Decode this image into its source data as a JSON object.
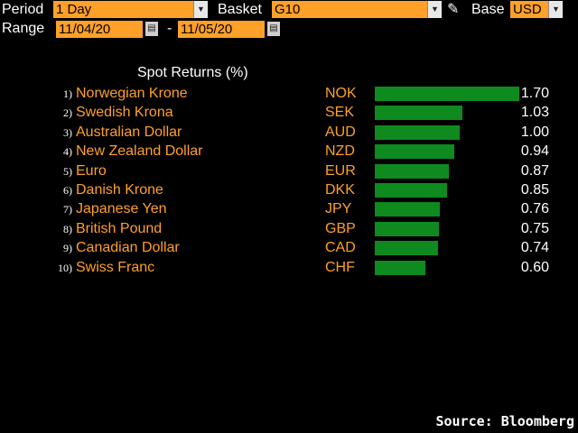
{
  "header": {
    "period_label": "Period",
    "period_value": "1 Day",
    "basket_label": "Basket",
    "basket_value": "G10",
    "base_label": "Base",
    "base_value": "USD",
    "range_label": "Range",
    "range_start": "11/04/20",
    "range_sep": "-",
    "range_end": "11/05/20"
  },
  "icons": {
    "dropdown": "▼",
    "calendar": "▤",
    "pencil": "✎"
  },
  "chart_data": {
    "type": "bar",
    "title": "Spot Returns (%)",
    "rows": [
      {
        "rank": "1)",
        "name": "Norwegian Krone",
        "code": "NOK",
        "value": 1.7,
        "label": "1.70"
      },
      {
        "rank": "2)",
        "name": "Swedish Krona",
        "code": "SEK",
        "value": 1.03,
        "label": "1.03"
      },
      {
        "rank": "3)",
        "name": "Australian Dollar",
        "code": "AUD",
        "value": 1.0,
        "label": "1.00"
      },
      {
        "rank": "4)",
        "name": "New Zealand Dollar",
        "code": "NZD",
        "value": 0.94,
        "label": "0.94"
      },
      {
        "rank": "5)",
        "name": "Euro",
        "code": "EUR",
        "value": 0.87,
        "label": "0.87"
      },
      {
        "rank": "6)",
        "name": "Danish Krone",
        "code": "DKK",
        "value": 0.85,
        "label": "0.85"
      },
      {
        "rank": "7)",
        "name": "Japanese Yen",
        "code": "JPY",
        "value": 0.76,
        "label": "0.76"
      },
      {
        "rank": "8)",
        "name": "British Pound",
        "code": "GBP",
        "value": 0.75,
        "label": "0.75"
      },
      {
        "rank": "9)",
        "name": "Canadian Dollar",
        "code": "CAD",
        "value": 0.74,
        "label": "0.74"
      },
      {
        "rank": "10)",
        "name": "Swiss Franc",
        "code": "CHF",
        "value": 0.6,
        "label": "0.60"
      }
    ],
    "bar_color": "#0f8a1e"
  },
  "footer": {
    "source": "Source: Bloomberg"
  }
}
